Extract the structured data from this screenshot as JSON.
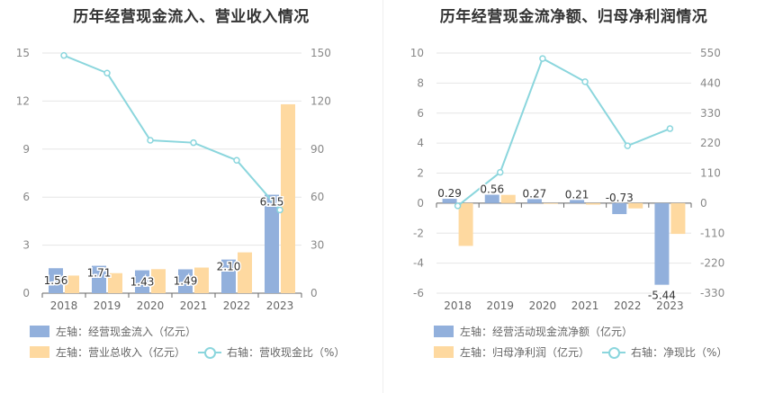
{
  "colors": {
    "bar1": "#92b0dc",
    "bar2": "#fed9a0",
    "line": "#8bd6dd"
  },
  "chart_data": [
    {
      "type": "bar",
      "title": "历年经营现金流入、营业收入情况",
      "categories": [
        "2018",
        "2019",
        "2020",
        "2021",
        "2022",
        "2023"
      ],
      "left_axis": {
        "min": 0,
        "max": 15,
        "ticks": [
          "0",
          "3",
          "6",
          "9",
          "12",
          "15"
        ]
      },
      "right_axis": {
        "min": 0,
        "max": 150,
        "ticks": [
          "0",
          "30",
          "60",
          "90",
          "120",
          "150"
        ]
      },
      "series": [
        {
          "name": "左轴：经营现金流入（亿元）",
          "kind": "bar",
          "axis": "left",
          "values": [
            1.56,
            1.71,
            1.43,
            1.49,
            2.1,
            6.15
          ],
          "labels": [
            "1.56",
            "1.71",
            "1.43",
            "1.49",
            "2.10",
            "6.15"
          ]
        },
        {
          "name": "左轴：营业总收入（亿元）",
          "kind": "bar",
          "axis": "left",
          "values": [
            1.1,
            1.25,
            1.5,
            1.6,
            2.55,
            11.8
          ]
        },
        {
          "name": "右轴：营收现金比（%）",
          "kind": "line",
          "axis": "right",
          "values": [
            148.5,
            137.5,
            95.5,
            94,
            83,
            52
          ]
        }
      ],
      "legend_position": "bottom-left",
      "grid": true
    },
    {
      "type": "bar",
      "title": "历年经营现金流净额、归母净利润情况",
      "categories": [
        "2018",
        "2019",
        "2020",
        "2021",
        "2022",
        "2023"
      ],
      "left_axis": {
        "min": -6,
        "max": 10,
        "ticks": [
          "-6",
          "-4",
          "-2",
          "0",
          "2",
          "4",
          "6",
          "8",
          "10"
        ]
      },
      "right_axis": {
        "min": -330,
        "max": 550,
        "ticks": [
          "-330",
          "-220",
          "-110",
          "0",
          "110",
          "220",
          "330",
          "440",
          "550"
        ]
      },
      "series": [
        {
          "name": "左轴：经营活动现金流净额（亿元）",
          "kind": "bar",
          "axis": "left",
          "values": [
            0.29,
            0.56,
            0.27,
            0.21,
            -0.73,
            -5.44
          ],
          "labels": [
            "0.29",
            "0.56",
            "0.27",
            "0.21",
            "-0.73",
            "-5.44"
          ]
        },
        {
          "name": "左轴：归母净利润（亿元）",
          "kind": "bar",
          "axis": "left",
          "values": [
            -2.85,
            0.55,
            -0.05,
            -0.1,
            -0.35,
            -2.05
          ]
        },
        {
          "name": "右轴：净现比（%）",
          "kind": "line",
          "axis": "right",
          "values": [
            -10,
            113,
            530,
            445,
            210,
            273
          ]
        }
      ],
      "legend_position": "bottom-left",
      "grid": true
    }
  ]
}
